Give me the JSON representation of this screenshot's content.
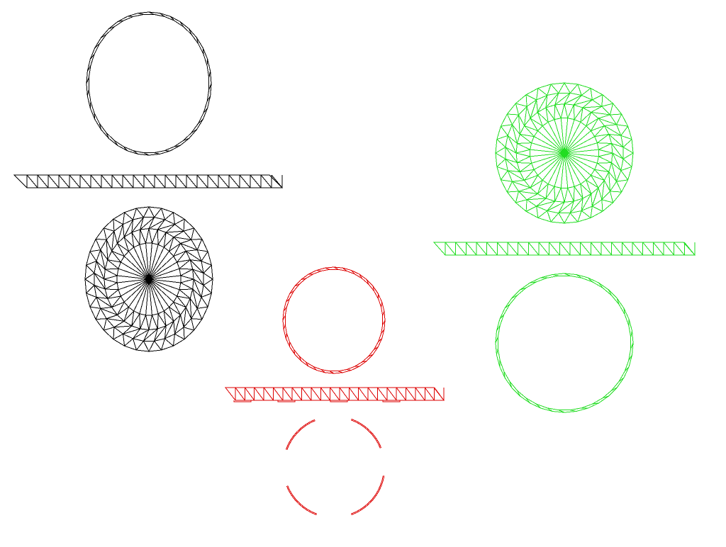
{
  "colors": {
    "background": "#ffffff",
    "black": "#000000",
    "green": "#22dd22",
    "red": "#dd0000"
  },
  "groups": [
    {
      "id": "black",
      "color": "black"
    },
    {
      "id": "green",
      "color": "green"
    },
    {
      "id": "red",
      "color": "red"
    }
  ]
}
